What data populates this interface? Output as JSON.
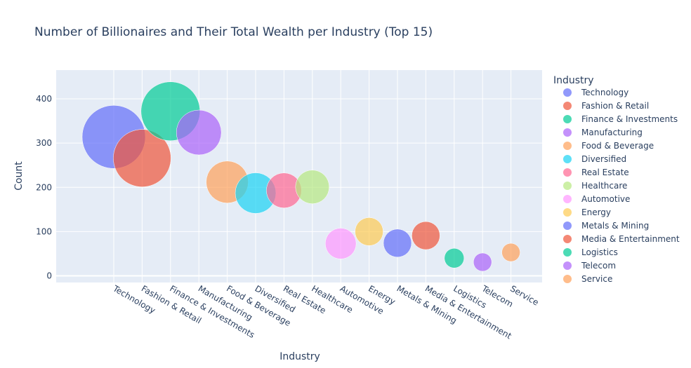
{
  "chart_data": {
    "type": "scatter",
    "title": "Number of Billionaires and Their Total Wealth per Industry (Top 15)",
    "xlabel": "Industry",
    "ylabel": "Count",
    "ylim": [
      -15,
      465
    ],
    "yticks": [
      0,
      100,
      200,
      300,
      400
    ],
    "grid": true,
    "legend_title": "Industry",
    "legend_position": "right",
    "bubble_opacity": 0.7,
    "categories": [
      "Technology",
      "Fashion & Retail",
      "Finance & Investments",
      "Manufacturing",
      "Food & Beverage",
      "Diversified",
      "Real Estate",
      "Healthcare",
      "Automotive",
      "Energy",
      "Metals & Mining",
      "Media & Entertainment",
      "Logistics",
      "Telecom",
      "Service"
    ],
    "series": [
      {
        "name": "Technology",
        "x": "Technology",
        "y": 314,
        "size": 45,
        "color": "#636efa"
      },
      {
        "name": "Fashion & Retail",
        "x": "Fashion & Retail",
        "y": 266,
        "size": 41,
        "color": "#EF553B"
      },
      {
        "name": "Finance & Investments",
        "x": "Finance & Investments",
        "y": 372,
        "size": 42,
        "color": "#00cc96"
      },
      {
        "name": "Manufacturing",
        "x": "Manufacturing",
        "y": 324,
        "size": 32,
        "color": "#ab63fa"
      },
      {
        "name": "Food & Beverage",
        "x": "Food & Beverage",
        "y": 212,
        "size": 30,
        "color": "#FFA15A"
      },
      {
        "name": "Diversified",
        "x": "Diversified",
        "y": 187,
        "size": 29,
        "color": "#19d3f3"
      },
      {
        "name": "Real Estate",
        "x": "Real Estate",
        "y": 193,
        "size": 25,
        "color": "#FF6692"
      },
      {
        "name": "Healthcare",
        "x": "Healthcare",
        "y": 201,
        "size": 24,
        "color": "#B6E880"
      },
      {
        "name": "Automotive",
        "x": "Automotive",
        "y": 73,
        "size": 22,
        "color": "#FF97FF"
      },
      {
        "name": "Energy",
        "x": "Energy",
        "y": 100,
        "size": 20,
        "color": "#FECB52"
      },
      {
        "name": "Metals & Mining",
        "x": "Metals & Mining",
        "y": 74,
        "size": 20,
        "color": "#636efa"
      },
      {
        "name": "Media & Entertainment",
        "x": "Media & Entertainment",
        "y": 91,
        "size": 20,
        "color": "#EF553B"
      },
      {
        "name": "Logistics",
        "x": "Logistics",
        "y": 40,
        "size": 14,
        "color": "#00cc96"
      },
      {
        "name": "Telecom",
        "x": "Telecom",
        "y": 31,
        "size": 13,
        "color": "#ab63fa"
      },
      {
        "name": "Service",
        "x": "Service",
        "y": 53,
        "size": 13,
        "color": "#FFA15A"
      }
    ]
  }
}
